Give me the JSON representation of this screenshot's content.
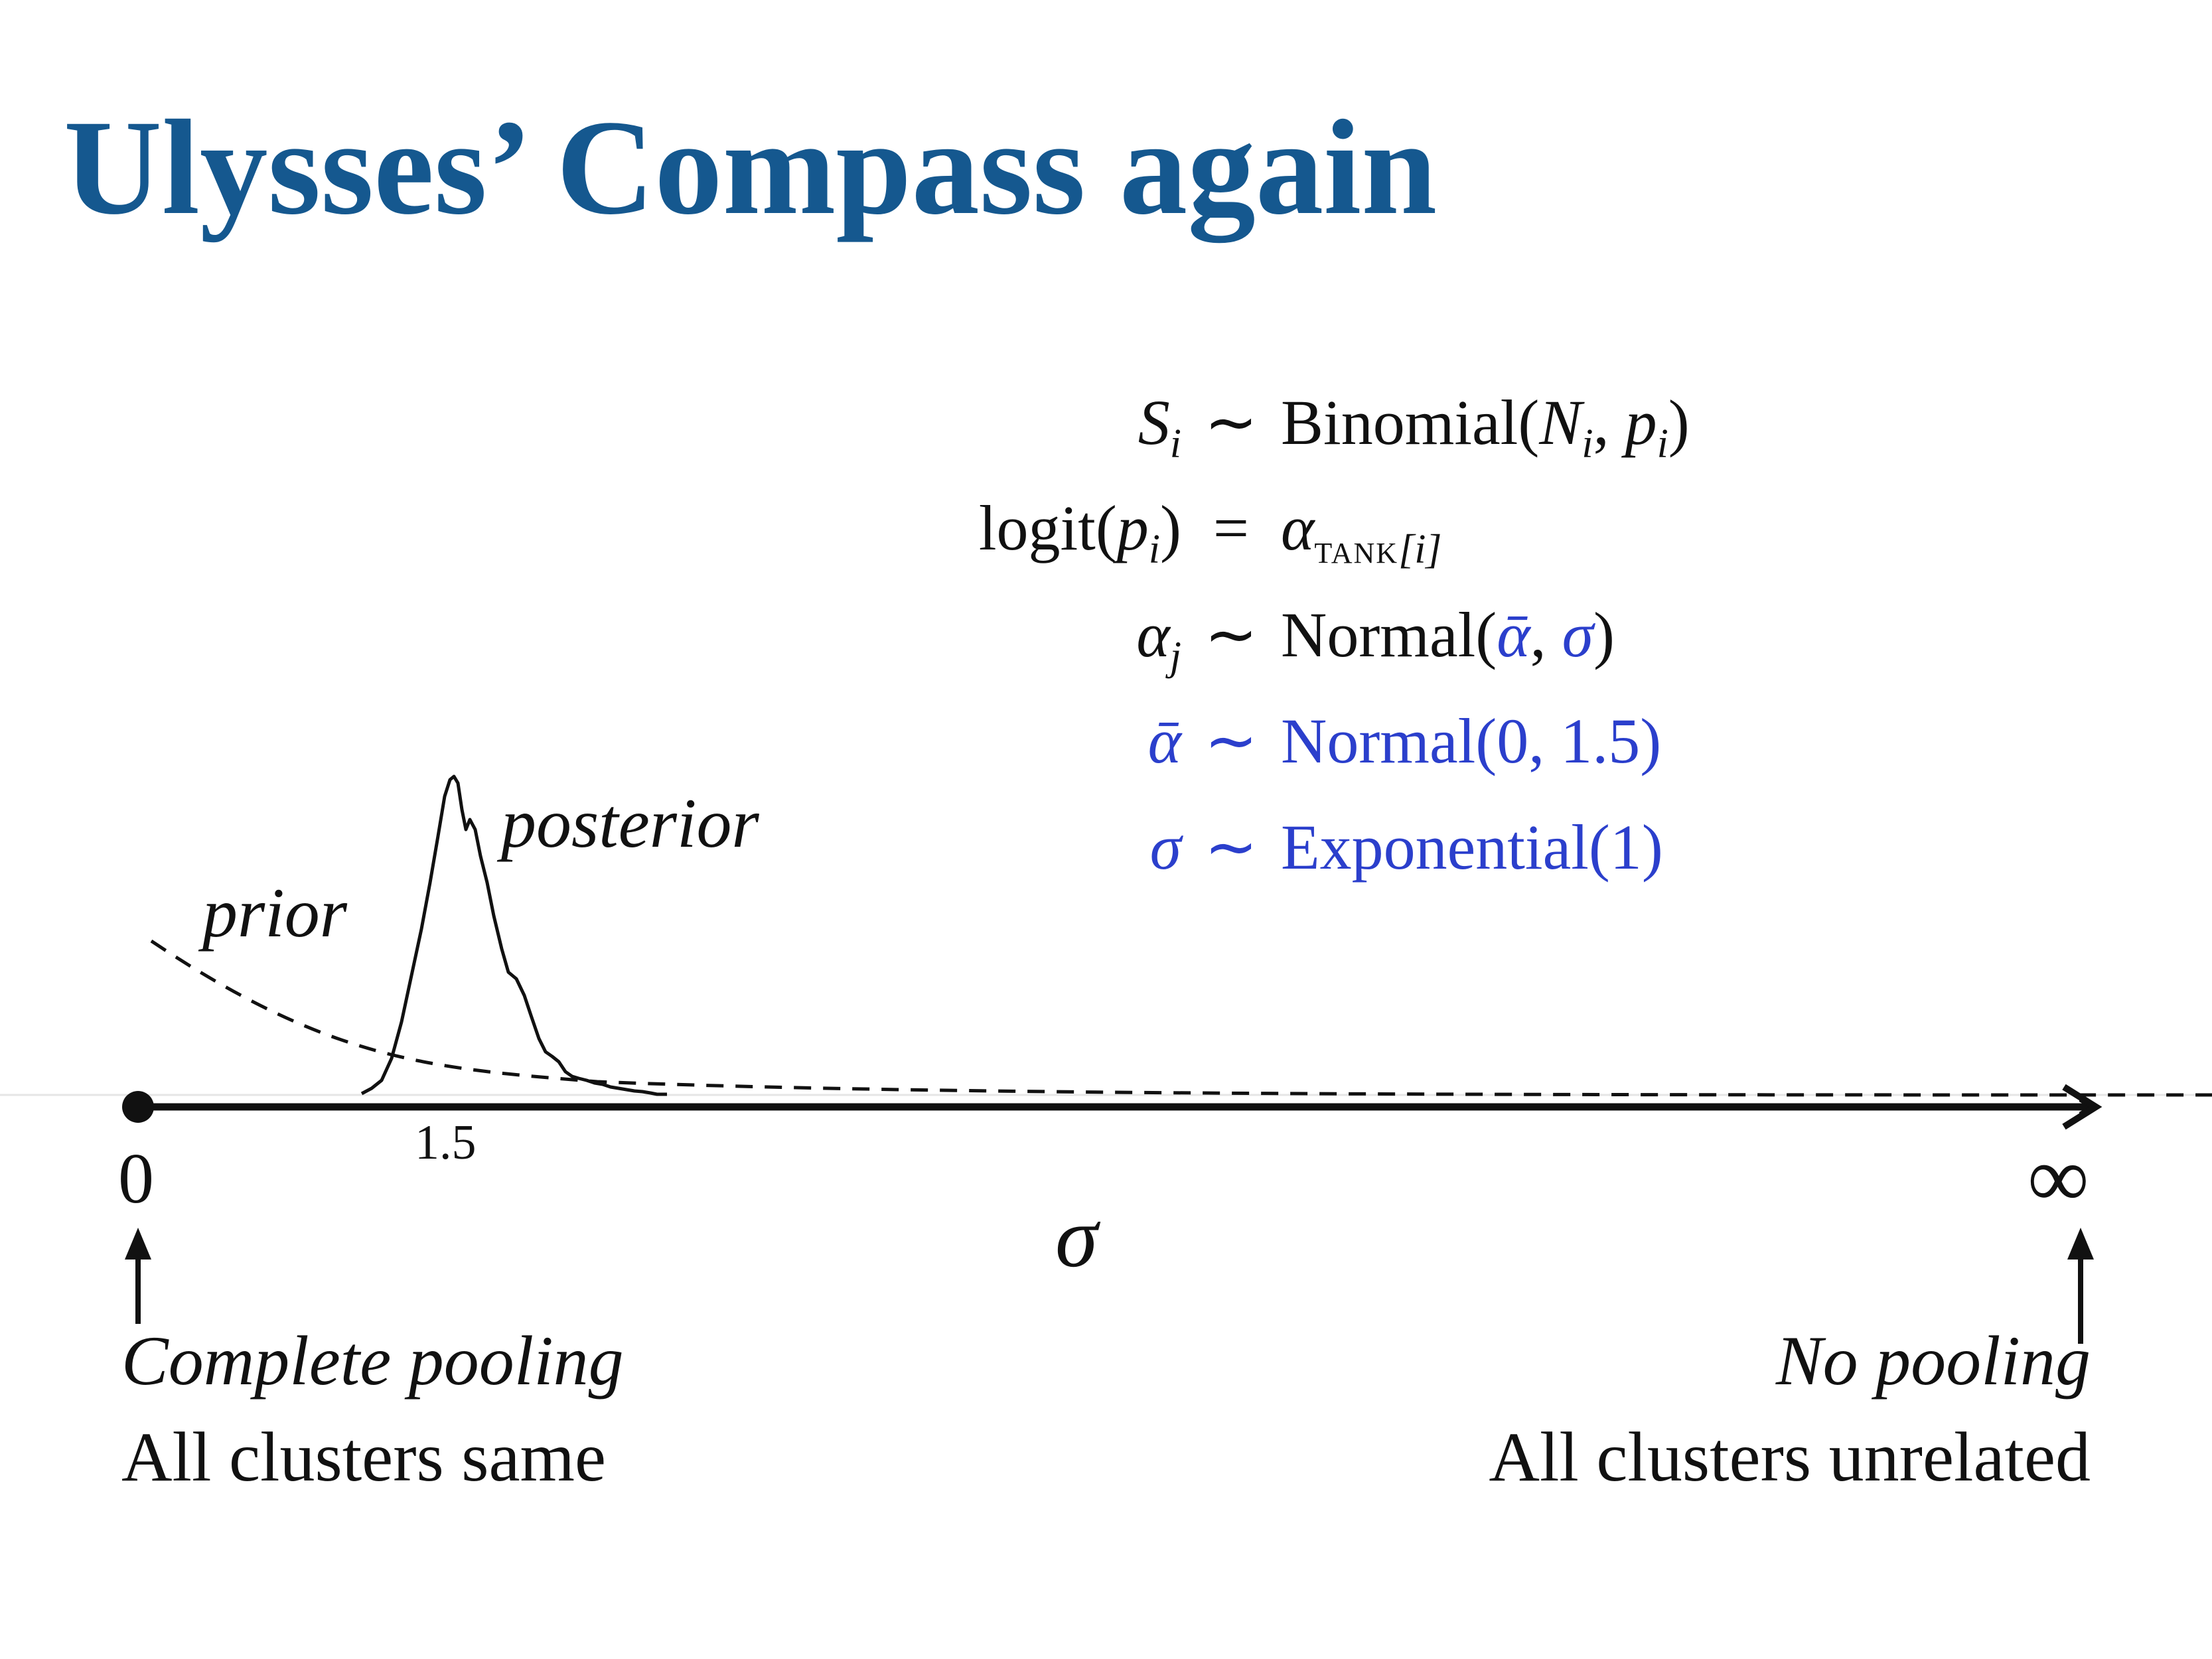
{
  "title": "Ulysses’ Compass again",
  "equations": {
    "row1": {
      "lhs": "S",
      "lhs_sub": "i",
      "op": "∼",
      "rhs_pre": "Binomial(",
      "a": "N",
      "a_sub": "i",
      "sep": ", ",
      "b": "p",
      "b_sub": "i",
      "rhs_post": ")"
    },
    "row2": {
      "lhs_fn": "logit(",
      "lhs_var": "p",
      "lhs_sub": "i",
      "lhs_close": ")",
      "op": "=",
      "rhs": "α",
      "rhs_sub_sc": "TANK",
      "rhs_sub_idx": "[i]"
    },
    "row3": {
      "lhs": "α",
      "lhs_sub": "j",
      "op": "∼",
      "rhs_pre": "Normal(",
      "a": "ᾱ",
      "sep": ", ",
      "b": "σ",
      "rhs_post": ")"
    },
    "row4": {
      "lhs": "ᾱ",
      "op": "∼",
      "rhs": "Normal(0, 1.5)"
    },
    "row5": {
      "lhs": "σ",
      "op": "∼",
      "rhs": "Exponential(1)"
    }
  },
  "diagram": {
    "prior_label": "prior",
    "posterior_label": "posterior",
    "axis_symbol": "σ",
    "axis_start": "0",
    "axis_tick": "1.5",
    "axis_end": "∞",
    "left_caption_1": "Complete pooling",
    "left_caption_2": "All clusters same",
    "right_caption_1": "No pooling",
    "right_caption_2": "All clusters unrelated"
  },
  "colors": {
    "title": "#15588f",
    "prior_eq": "#2b3fcc",
    "ink": "#111111"
  }
}
